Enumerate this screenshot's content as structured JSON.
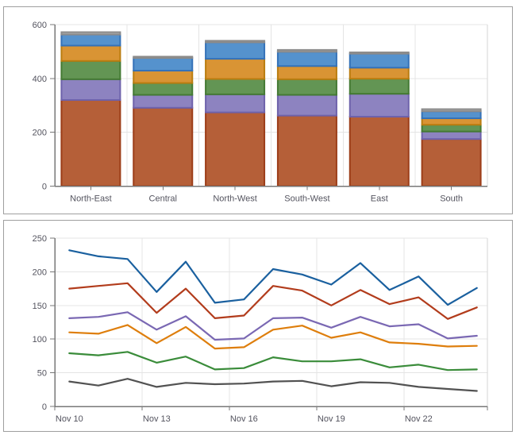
{
  "page": {
    "background_color": "#ffffff",
    "panel_border_color": "#9f9f9f"
  },
  "chart_data": [
    {
      "id": "region-stacked-bar",
      "type": "bar",
      "stacked": true,
      "title": "",
      "xlabel": "",
      "ylabel": "",
      "legend": "none",
      "grid": true,
      "ylim": [
        0,
        600
      ],
      "yticks": [
        0,
        200,
        400,
        600
      ],
      "categories": [
        "North-East",
        "Central",
        "North-West",
        "South-West",
        "East",
        "South"
      ],
      "series": [
        {
          "name": "segment-rust",
          "fill": "#B55F38",
          "stroke": "#9C3D18",
          "values": [
            320,
            291,
            274,
            262,
            258,
            175
          ]
        },
        {
          "name": "segment-purple",
          "fill": "#8D83C0",
          "stroke": "#6E62AB",
          "values": [
            77,
            48,
            67,
            77,
            85,
            28
          ]
        },
        {
          "name": "segment-green",
          "fill": "#639554",
          "stroke": "#447A33",
          "values": [
            68,
            44,
            57,
            58,
            56,
            25
          ]
        },
        {
          "name": "segment-orange",
          "fill": "#D99434",
          "stroke": "#BA7D10",
          "values": [
            57,
            46,
            75,
            49,
            41,
            24
          ]
        },
        {
          "name": "segment-blue",
          "fill": "#5592CD",
          "stroke": "#3572B8",
          "values": [
            41,
            47,
            61,
            53,
            52,
            26
          ]
        },
        {
          "name": "segment-gray",
          "fill": "#A8A8A8",
          "stroke": "#8B8B8B",
          "values": [
            9,
            5,
            6,
            7,
            5,
            8
          ]
        }
      ],
      "axis_color": "#787878",
      "grid_color": "#e4e4e4",
      "edge_color": "#d6d6d6",
      "tick_label_color": "#53535e"
    },
    {
      "id": "daily-line-chart",
      "type": "line",
      "title": "",
      "xlabel": "",
      "ylabel": "",
      "legend": "none",
      "grid": true,
      "ylim": [
        0,
        250
      ],
      "yticks": [
        0,
        50,
        100,
        150,
        200,
        250
      ],
      "x": [
        "Nov 10",
        "Nov 11",
        "Nov 12",
        "Nov 13",
        "Nov 14",
        "Nov 15",
        "Nov 16",
        "Nov 17",
        "Nov 18",
        "Nov 19",
        "Nov 20",
        "Nov 21",
        "Nov 22",
        "Nov 23",
        "Nov 24"
      ],
      "x_tick_labels": [
        "Nov 10",
        "Nov 13",
        "Nov 16",
        "Nov 19",
        "Nov 22"
      ],
      "label_every": 3,
      "series": [
        {
          "name": "line-blue",
          "color": "#1A609F",
          "values": [
            232,
            223,
            219,
            170,
            215,
            154,
            159,
            204,
            196,
            181,
            213,
            173,
            193,
            151,
            176
          ]
        },
        {
          "name": "line-red",
          "color": "#B23C1C",
          "values": [
            175,
            179,
            183,
            139,
            175,
            131,
            135,
            179,
            172,
            150,
            173,
            152,
            162,
            130,
            147
          ]
        },
        {
          "name": "line-purple",
          "color": "#7A68B3",
          "values": [
            131,
            133,
            140,
            114,
            134,
            99,
            101,
            131,
            132,
            117,
            133,
            119,
            122,
            101,
            105
          ]
        },
        {
          "name": "line-orange",
          "color": "#DE7E0C",
          "values": [
            110,
            108,
            121,
            94,
            118,
            86,
            88,
            114,
            120,
            102,
            110,
            95,
            93,
            89,
            90
          ]
        },
        {
          "name": "line-green",
          "color": "#3A8C3A",
          "values": [
            79,
            76,
            81,
            65,
            74,
            55,
            57,
            73,
            67,
            67,
            70,
            58,
            62,
            54,
            55
          ]
        },
        {
          "name": "line-gray",
          "color": "#525252",
          "values": [
            37,
            31,
            41,
            29,
            35,
            33,
            34,
            37,
            38,
            30,
            36,
            35,
            29,
            26,
            23
          ]
        }
      ],
      "axis_color": "#787878",
      "grid_color": "#e4e4e4",
      "edge_color": "#d6d6d6",
      "tick_label_color": "#53535e"
    }
  ]
}
